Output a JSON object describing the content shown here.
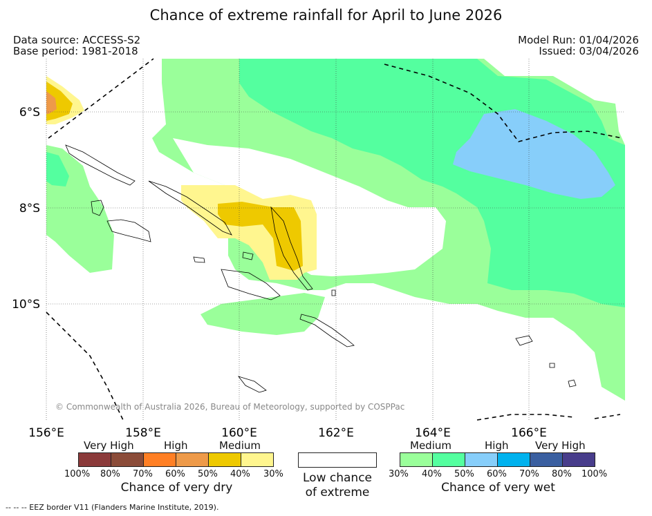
{
  "title": "Chance of extreme rainfall for April to June 2026",
  "meta": {
    "data_source": "Data source: ACCESS-S2",
    "base_period": "Base period: 1981-2018",
    "model_run": "Model Run: 01/04/2026",
    "issued": "Issued: 03/04/2026"
  },
  "map": {
    "lat_labels": [
      "6°S",
      "8°S",
      "10°S"
    ],
    "lon_labels": [
      "156°E",
      "158°E",
      "160°E",
      "162°E",
      "164°E",
      "166°E"
    ],
    "copyright": "© Commonwealth of Australia 2026, Bureau of Meteorology, supported by COSPPac",
    "colors": {
      "dry_medium": "#fff68f",
      "dry_medium_high": "#eec900",
      "dry_high": "#ee9a49",
      "wet_30": "#9aff9a",
      "wet_40": "#54ff9f",
      "wet_50": "#87cefa"
    }
  },
  "legend": {
    "dry": {
      "headings": [
        "Very High",
        "High",
        "Medium"
      ],
      "colors": [
        "#8b3a3a",
        "#8b4c39",
        "#ff7f24",
        "#ee9a49",
        "#eec900",
        "#fff68f"
      ],
      "ticks": [
        "100%",
        "80%",
        "70%",
        "60%",
        "50%",
        "40%",
        "30%"
      ],
      "caption": "Chance of very dry"
    },
    "low": {
      "color": "#ffffff",
      "caption_line1": "Low chance",
      "caption_line2": "of extreme"
    },
    "wet": {
      "headings": [
        "Medium",
        "High",
        "Very High"
      ],
      "colors": [
        "#9aff9a",
        "#54ff9f",
        "#87cefa",
        "#00b2ee",
        "#3a5fa0",
        "#483d8b"
      ],
      "ticks": [
        "30%",
        "40%",
        "50%",
        "60%",
        "70%",
        "80%",
        "100%"
      ],
      "caption": "Chance of very wet"
    }
  },
  "footnote": "--  --  -- EEZ border V11 (Flanders Marine Institute, 2019)."
}
